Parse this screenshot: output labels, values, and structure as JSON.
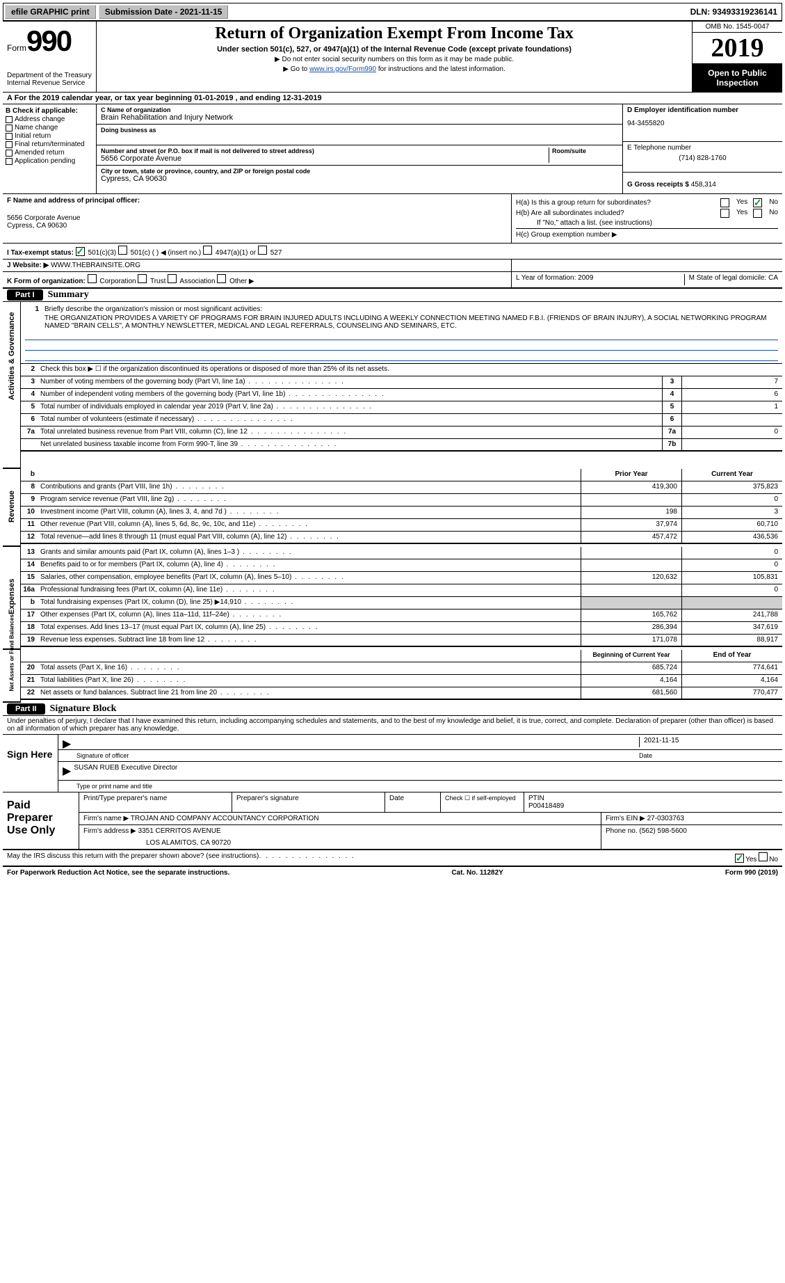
{
  "topbar": {
    "efile": "efile GRAPHIC print",
    "submission": "Submission Date - 2021-11-15",
    "dln": "DLN: 93493319236141"
  },
  "header": {
    "form_prefix": "Form",
    "form_num": "990",
    "title": "Return of Organization Exempt From Income Tax",
    "subtitle": "Under section 501(c), 527, or 4947(a)(1) of the Internal Revenue Code (except private foundations)",
    "note1": "▶ Do not enter social security numbers on this form as it may be made public.",
    "note2_pre": "▶ Go to ",
    "note2_link": "www.irs.gov/Form990",
    "note2_post": " for instructions and the latest information.",
    "dept": "Department of the Treasury\nInternal Revenue Service",
    "omb": "OMB No. 1545-0047",
    "year": "2019",
    "open": "Open to Public Inspection"
  },
  "section_a": "A For the 2019 calendar year, or tax year beginning 01-01-2019    , and ending 12-31-2019",
  "col_b": {
    "label": "B Check if applicable:",
    "items": [
      "Address change",
      "Name change",
      "Initial return",
      "Final return/terminated",
      "Amended return",
      "Application pending"
    ]
  },
  "col_c": {
    "name_label": "C Name of organization",
    "name": "Brain Rehabilitation and Injury Network",
    "dba_label": "Doing business as",
    "addr_label": "Number and street (or P.O. box if mail is not delivered to street address)",
    "room_label": "Room/suite",
    "addr": "5656 Corporate Avenue",
    "city_label": "City or town, state or province, country, and ZIP or foreign postal code",
    "city": "Cypress, CA  90630"
  },
  "col_d": {
    "ein_label": "D Employer identification number",
    "ein": "94-3455820",
    "tel_label": "E Telephone number",
    "tel": "(714) 828-1760",
    "gross_label": "G Gross receipts $",
    "gross": "458,314"
  },
  "col_f": {
    "label": "F  Name and address of principal officer:",
    "addr1": "5656 Corporate Avenue",
    "addr2": "Cypress, CA  90630"
  },
  "col_h": {
    "a": "H(a)  Is this a group return for subordinates?",
    "b": "H(b)  Are all subordinates included?",
    "b_note": "If \"No,\" attach a list. (see instructions)",
    "c": "H(c)  Group exemption number ▶"
  },
  "row_i": {
    "label": "I   Tax-exempt status:",
    "opts": [
      "501(c)(3)",
      "501(c) (  ) ◀ (insert no.)",
      "4947(a)(1) or",
      "527"
    ]
  },
  "row_j": {
    "label": "J   Website: ▶",
    "val": "WWW.THEBRAINSITE.ORG"
  },
  "row_k": {
    "label": "K Form of organization:",
    "opts": [
      "Corporation",
      "Trust",
      "Association",
      "Other ▶"
    ],
    "l": "L Year of formation: 2009",
    "m": "M State of legal domicile: CA"
  },
  "part1": {
    "hdr": "Part I",
    "title": "Summary"
  },
  "summary": {
    "q1": "Briefly describe the organization's mission or most significant activities:",
    "mission": "THE ORGANIZATION PROVIDES A VARIETY OF PROGRAMS FOR BRAIN INJURED ADULTS INCLUDING A WEEKLY CONNECTION MEETING NAMED F.B.I. (FRIENDS OF BRAIN INJURY), A SOCIAL NETWORKING PROGRAM NAMED \"BRAIN CELLS\", A MONTHLY NEWSLETTER, MEDICAL AND LEGAL REFERRALS, COUNSELING AND SEMINARS, ETC.",
    "q2": "Check this box ▶ ☐ if the organization discontinued its operations or disposed of more than 25% of its net assets.",
    "lines_gov": [
      {
        "n": "3",
        "t": "Number of voting members of the governing body (Part VI, line 1a)",
        "c": "3",
        "v": "7"
      },
      {
        "n": "4",
        "t": "Number of independent voting members of the governing body (Part VI, line 1b)",
        "c": "4",
        "v": "6"
      },
      {
        "n": "5",
        "t": "Total number of individuals employed in calendar year 2019 (Part V, line 2a)",
        "c": "5",
        "v": "1"
      },
      {
        "n": "6",
        "t": "Total number of volunteers (estimate if necessary)",
        "c": "6",
        "v": ""
      },
      {
        "n": "7a",
        "t": "Total unrelated business revenue from Part VIII, column (C), line 12",
        "c": "7a",
        "v": "0"
      },
      {
        "n": "",
        "t": "Net unrelated business taxable income from Form 990-T, line 39",
        "c": "7b",
        "v": ""
      }
    ],
    "col_hdr_prior": "Prior Year",
    "col_hdr_curr": "Current Year",
    "lines_rev": [
      {
        "n": "8",
        "t": "Contributions and grants (Part VIII, line 1h)",
        "p": "419,300",
        "c": "375,823"
      },
      {
        "n": "9",
        "t": "Program service revenue (Part VIII, line 2g)",
        "p": "",
        "c": "0"
      },
      {
        "n": "10",
        "t": "Investment income (Part VIII, column (A), lines 3, 4, and 7d )",
        "p": "198",
        "c": "3"
      },
      {
        "n": "11",
        "t": "Other revenue (Part VIII, column (A), lines 5, 6d, 8c, 9c, 10c, and 11e)",
        "p": "37,974",
        "c": "60,710"
      },
      {
        "n": "12",
        "t": "Total revenue—add lines 8 through 11 (must equal Part VIII, column (A), line 12)",
        "p": "457,472",
        "c": "436,536"
      }
    ],
    "lines_exp": [
      {
        "n": "13",
        "t": "Grants and similar amounts paid (Part IX, column (A), lines 1–3 )",
        "p": "",
        "c": "0"
      },
      {
        "n": "14",
        "t": "Benefits paid to or for members (Part IX, column (A), line 4)",
        "p": "",
        "c": "0"
      },
      {
        "n": "15",
        "t": "Salaries, other compensation, employee benefits (Part IX, column (A), lines 5–10)",
        "p": "120,632",
        "c": "105,831"
      },
      {
        "n": "16a",
        "t": "Professional fundraising fees (Part IX, column (A), line 11e)",
        "p": "",
        "c": "0"
      },
      {
        "n": "b",
        "t": "Total fundraising expenses (Part IX, column (D), line 25) ▶14,910",
        "p": "SHADE",
        "c": "SHADE"
      },
      {
        "n": "17",
        "t": "Other expenses (Part IX, column (A), lines 11a–11d, 11f–24e)",
        "p": "165,762",
        "c": "241,788"
      },
      {
        "n": "18",
        "t": "Total expenses. Add lines 13–17 (must equal Part IX, column (A), line 25)",
        "p": "286,394",
        "c": "347,619"
      },
      {
        "n": "19",
        "t": "Revenue less expenses. Subtract line 18 from line 12",
        "p": "171,078",
        "c": "88,917"
      }
    ],
    "col_hdr_beg": "Beginning of Current Year",
    "col_hdr_end": "End of Year",
    "lines_net": [
      {
        "n": "20",
        "t": "Total assets (Part X, line 16)",
        "p": "685,724",
        "c": "774,641"
      },
      {
        "n": "21",
        "t": "Total liabilities (Part X, line 26)",
        "p": "4,164",
        "c": "4,164"
      },
      {
        "n": "22",
        "t": "Net assets or fund balances. Subtract line 21 from line 20",
        "p": "681,560",
        "c": "770,477"
      }
    ],
    "side_gov": "Activities & Governance",
    "side_rev": "Revenue",
    "side_exp": "Expenses",
    "side_net": "Net Assets or Fund Balances"
  },
  "part2": {
    "hdr": "Part II",
    "title": "Signature Block"
  },
  "sig": {
    "decl": "Under penalties of perjury, I declare that I have examined this return, including accompanying schedules and statements, and to the best of my knowledge and belief, it is true, correct, and complete. Declaration of preparer (other than officer) is based on all information of which preparer has any knowledge.",
    "sign_here": "Sign Here",
    "sig_officer": "Signature of officer",
    "date": "Date",
    "date_val": "2021-11-15",
    "name": "SUSAN RUEB Executive Director",
    "name_label": "Type or print name and title"
  },
  "prep": {
    "label": "Paid Preparer Use Only",
    "print_label": "Print/Type preparer's name",
    "sig_label": "Preparer's signature",
    "date_label": "Date",
    "check_label": "Check ☐ if self-employed",
    "ptin_label": "PTIN",
    "ptin": "P00418489",
    "firm_name_label": "Firm's name    ▶",
    "firm_name": "TROJAN AND COMPANY ACCOUNTANCY CORPORATION",
    "firm_ein_label": "Firm's EIN ▶",
    "firm_ein": "27-0303763",
    "firm_addr_label": "Firm's address ▶",
    "firm_addr1": "3351 CERRITOS AVENUE",
    "firm_addr2": "LOS ALAMITOS, CA  90720",
    "phone_label": "Phone no.",
    "phone": "(562) 598-5600"
  },
  "discuss": "May the IRS discuss this return with the preparer shown above? (see instructions)",
  "foot": {
    "left": "For Paperwork Reduction Act Notice, see the separate instructions.",
    "mid": "Cat. No. 11282Y",
    "right": "Form 990 (2019)"
  },
  "yn": {
    "yes": "Yes",
    "no": "No"
  }
}
